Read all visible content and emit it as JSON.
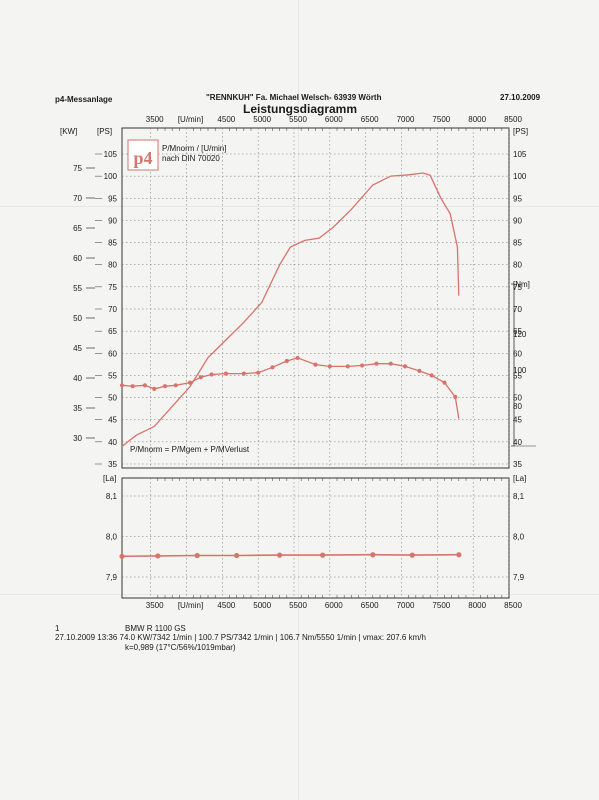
{
  "header": {
    "left": "p4-Messanlage",
    "center": "\"RENNKUH\"   Fa. Michael Welsch- 63939 Wörth",
    "date": "27.10.2009",
    "title": "Leistungsdiagramm"
  },
  "legend_box": {
    "logo": "p4",
    "line1": "P/Mnorm / [U/min]",
    "line2": "nach DIN 70020"
  },
  "formula": "P/Mnorm = P/Mgem + P/MVerlust",
  "footer": {
    "num": "1",
    "model": "BMW R 1100 GS",
    "line2": "27.10.2009  13:36  74.0 KW/7342 1/min  |  100.7 PS/7342 1/min  |  106.7 Nm/5550 1/min  |  vmax: 207.6 km/h",
    "line3": "k=0,989 (17°C/56%/1019mbar)"
  },
  "colors": {
    "curve": "#d9736b",
    "grid": "#6a6a6a",
    "frame": "#333333"
  },
  "chart_data": [
    {
      "type": "line",
      "title": "Leistungsdiagramm",
      "xlabel": "[U/min]",
      "x_ticks": [
        3500,
        4000,
        4500,
        5000,
        5500,
        6000,
        6500,
        7000,
        7500,
        8000,
        8500
      ],
      "x_tick_labels_top": [
        "3500",
        "[U/min]",
        "4500",
        "5000",
        "5500",
        "6000",
        "6500",
        "7000",
        "7500",
        "8000",
        "8500"
      ],
      "xlim": [
        3100,
        8500
      ],
      "y_left_kw_label": "[KW]",
      "y_left_kw_ticks": [
        30,
        35,
        40,
        45,
        50,
        55,
        60,
        65,
        70,
        75
      ],
      "y_left_ps_label": "[PS]",
      "y_left_ps_ticks": [
        35,
        40,
        45,
        50,
        55,
        60,
        65,
        70,
        75,
        80,
        85,
        90,
        95,
        100,
        105
      ],
      "y_right_ps_label": "[PS]",
      "y_right_ps_ticks": [
        35,
        40,
        45,
        50,
        55,
        60,
        65,
        70,
        75,
        80,
        85,
        90,
        95,
        100,
        105
      ],
      "y_right_nm_label": "[Nm]",
      "y_right_nm_ticks": [
        80,
        100,
        120
      ],
      "ylim_ps": [
        35,
        108
      ],
      "ylim_nm": [
        62,
        148
      ],
      "grid": true,
      "series": [
        {
          "unit": "PS",
          "x": [
            3100,
            3300,
            3550,
            3800,
            4050,
            4300,
            4550,
            4800,
            5050,
            5300,
            5450,
            5650,
            5850,
            6050,
            6300,
            6600,
            6850,
            7100,
            7300,
            7400,
            7550,
            7680,
            7780,
            7800
          ],
          "y": [
            39,
            41.5,
            43.5,
            48,
            52.5,
            59,
            63,
            67,
            71.5,
            80,
            84,
            85.5,
            86,
            88.5,
            92.5,
            98,
            100,
            100.3,
            100.7,
            100.2,
            95,
            91.5,
            84,
            73
          ]
        },
        {
          "unit": "Nm",
          "x": [
            3100,
            3250,
            3420,
            3550,
            3700,
            3850,
            4050,
            4200,
            4350,
            4550,
            4800,
            5000,
            5200,
            5400,
            5550,
            5800,
            6000,
            6250,
            6450,
            6650,
            6850,
            7050,
            7250,
            7420,
            7600,
            7750,
            7800
          ],
          "y": [
            91.5,
            91,
            91.5,
            89.5,
            91,
            91.5,
            93,
            96,
            97.5,
            98,
            98,
            98.5,
            101.5,
            105,
            106.7,
            103,
            102,
            102,
            102.5,
            103.5,
            103.5,
            102,
            99.5,
            97,
            93,
            85,
            73
          ]
        }
      ]
    },
    {
      "type": "line",
      "ylabel": "[La]",
      "x_ticks": [
        3500,
        4000,
        4500,
        5000,
        5500,
        6000,
        6500,
        7000,
        7500,
        8000,
        8500
      ],
      "x_tick_labels_bottom": [
        "3500",
        "[U/min]",
        "4500",
        "5000",
        "5500",
        "6000",
        "6500",
        "7000",
        "7500",
        "8000",
        "8500"
      ],
      "xlim": [
        3100,
        8500
      ],
      "y_ticks": [
        7.9,
        8.0,
        8.1
      ],
      "y_tick_labels": [
        "7,9",
        "8,0",
        "8,1"
      ],
      "ylim": [
        7.85,
        8.17
      ],
      "grid": true,
      "series": [
        {
          "x": [
            3100,
            3600,
            4150,
            4700,
            5300,
            5900,
            6600,
            7150,
            7800
          ],
          "y": [
            7.951,
            7.952,
            7.953,
            7.953,
            7.954,
            7.954,
            7.955,
            7.954,
            7.955
          ]
        }
      ]
    }
  ]
}
